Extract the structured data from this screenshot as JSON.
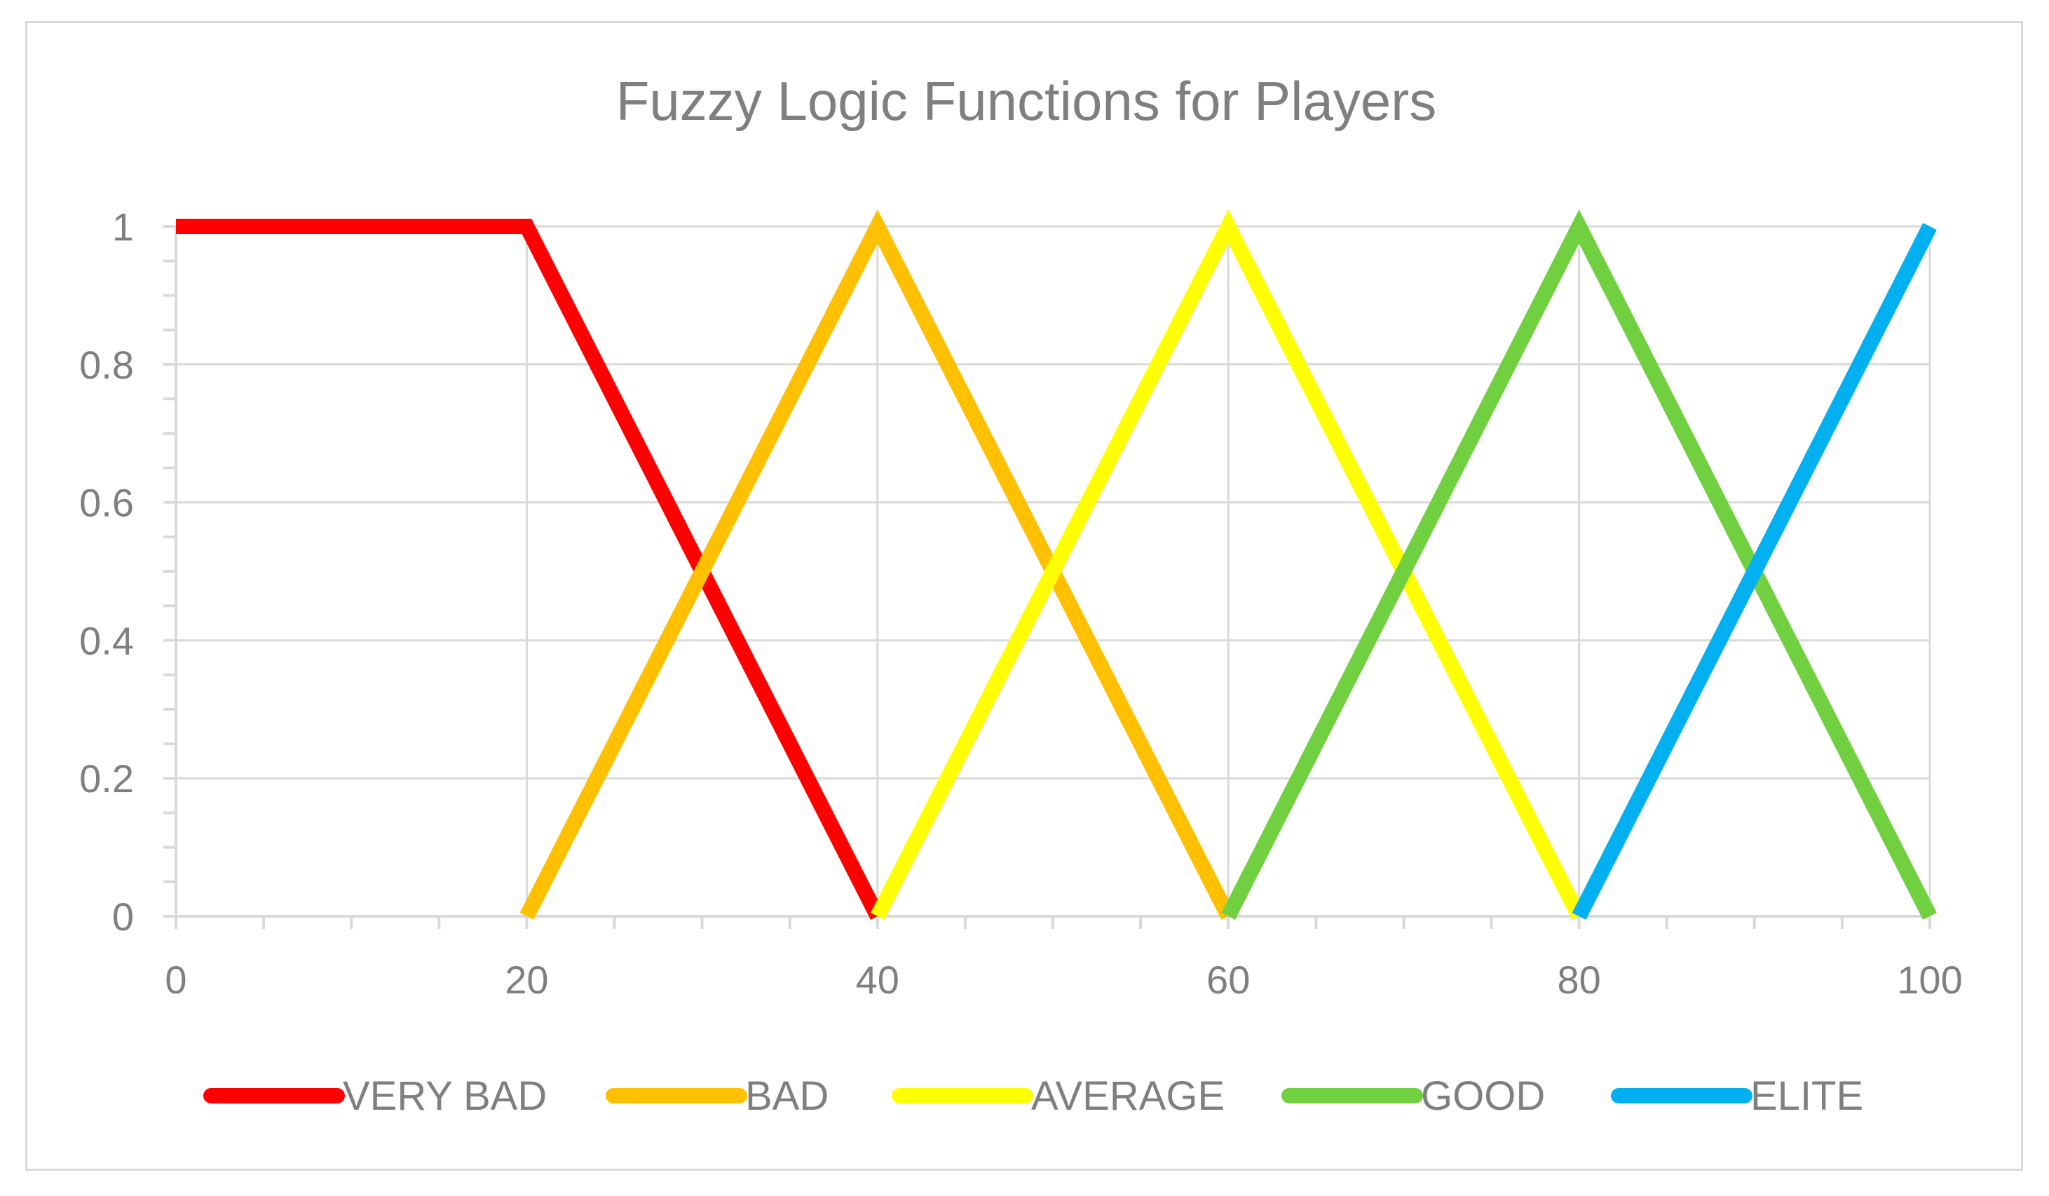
{
  "chart_data": {
    "type": "line",
    "title": "Fuzzy Logic Functions for Players",
    "xlabel": "",
    "ylabel": "",
    "xlim": [
      0,
      100
    ],
    "ylim": [
      0,
      1
    ],
    "x_ticks": [
      "0",
      "20",
      "40",
      "60",
      "80",
      "100"
    ],
    "y_ticks": [
      "0",
      "0.2",
      "0.4",
      "0.6",
      "0.8",
      "1"
    ],
    "grid": true,
    "legend_position": "bottom",
    "series": [
      {
        "name": "VERY BAD",
        "color": "#ff0000",
        "points": [
          [
            0,
            1
          ],
          [
            20,
            1
          ],
          [
            40,
            0
          ]
        ]
      },
      {
        "name": "BAD",
        "color": "#ffc000",
        "points": [
          [
            20,
            0
          ],
          [
            40,
            1
          ],
          [
            60,
            0
          ]
        ]
      },
      {
        "name": "AVERAGE",
        "color": "#ffff00",
        "points": [
          [
            40,
            0
          ],
          [
            60,
            1
          ],
          [
            80,
            0
          ]
        ]
      },
      {
        "name": "GOOD",
        "color": "#70d040",
        "points": [
          [
            60,
            0
          ],
          [
            80,
            1
          ],
          [
            100,
            0
          ]
        ]
      },
      {
        "name": "ELITE",
        "color": "#00b0f0",
        "points": [
          [
            80,
            0
          ],
          [
            100,
            1
          ]
        ]
      }
    ]
  }
}
